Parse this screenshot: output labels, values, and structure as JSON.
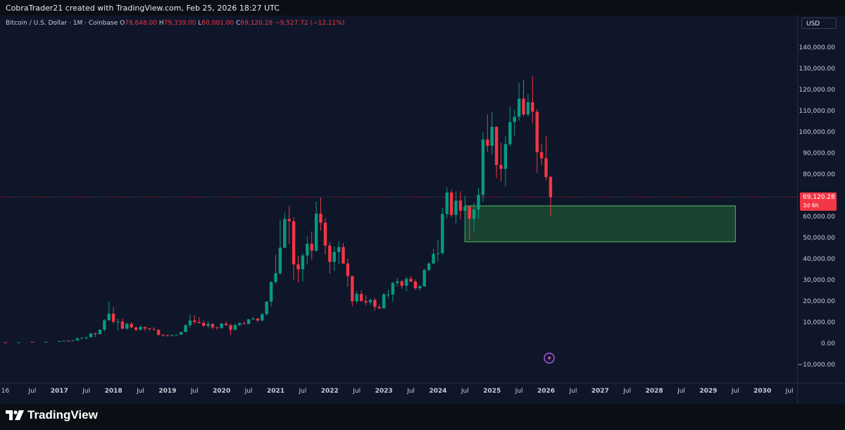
{
  "credit": "CobraTrader21 created with TradingView.com, Feb 25, 2026 18:27 UTC",
  "legend": {
    "symbol": "Bitcoin / U.S. Dollar · 1M · Coinbase",
    "o_label": "O",
    "o_value": "78,648.00",
    "h_label": "H",
    "h_value": "79,339.00",
    "l_label": "L",
    "l_value": "60,001.00",
    "c_label": "C",
    "c_value": "69,120.28",
    "change": "−9,527.72 (−12.11%)"
  },
  "currency_button": "USD",
  "last_price": {
    "price": "69,120.28",
    "countdown": "3d 6h",
    "value": 69120.28
  },
  "brand": "TradingView",
  "colors": {
    "up": "#089981",
    "down": "#f23645",
    "zone_fill": "#1b4a33",
    "zone_border": "#4ec25a",
    "background": "#0f1629",
    "text": "#c7ccd6"
  },
  "icons": {
    "logo": "tradingview-logo-icon",
    "events": "events-icon"
  },
  "chart_data": {
    "type": "candlestick",
    "title": "Bitcoin / U.S. Dollar · 1M · Coinbase",
    "y_range": [
      -15000,
      150000
    ],
    "y_ticks": [
      140000,
      130000,
      120000,
      110000,
      100000,
      90000,
      80000,
      70000,
      60000,
      50000,
      40000,
      30000,
      20000,
      10000,
      0,
      -10000
    ],
    "y_tick_labels": [
      "140,000.00",
      "130,000.00",
      "120,000.00",
      "110,000.00",
      "100,000.00",
      "90,000.00",
      "80,000.00",
      "70,000.00",
      "60,000.00",
      "50,000.00",
      "40,000.00",
      "30,000.00",
      "20,000.00",
      "10,000.00",
      "0.00",
      "−10,000.00"
    ],
    "x_ticks": [
      {
        "label": "16",
        "date": "2016-01"
      },
      {
        "label": "Jul",
        "date": "2016-07"
      },
      {
        "label": "2017",
        "date": "2017-01"
      },
      {
        "label": "Jul",
        "date": "2017-07"
      },
      {
        "label": "2018",
        "date": "2018-01"
      },
      {
        "label": "Jul",
        "date": "2018-07"
      },
      {
        "label": "2019",
        "date": "2019-01"
      },
      {
        "label": "Jul",
        "date": "2019-07"
      },
      {
        "label": "2020",
        "date": "2020-01"
      },
      {
        "label": "Jul",
        "date": "2020-07"
      },
      {
        "label": "2021",
        "date": "2021-01"
      },
      {
        "label": "Jul",
        "date": "2021-07"
      },
      {
        "label": "2022",
        "date": "2022-01"
      },
      {
        "label": "Jul",
        "date": "2022-07"
      },
      {
        "label": "2023",
        "date": "2023-01"
      },
      {
        "label": "Jul",
        "date": "2023-07"
      },
      {
        "label": "2024",
        "date": "2024-01"
      },
      {
        "label": "Jul",
        "date": "2024-07"
      },
      {
        "label": "2025",
        "date": "2025-01"
      },
      {
        "label": "Jul",
        "date": "2025-07"
      },
      {
        "label": "2026",
        "date": "2026-01"
      },
      {
        "label": "Jul",
        "date": "2026-07"
      },
      {
        "label": "2027",
        "date": "2027-01"
      },
      {
        "label": "Jul",
        "date": "2027-07"
      },
      {
        "label": "2028",
        "date": "2028-01"
      },
      {
        "label": "Jul",
        "date": "2028-07"
      },
      {
        "label": "2029",
        "date": "2029-01"
      },
      {
        "label": "Jul",
        "date": "2029-07"
      },
      {
        "label": "2030",
        "date": "2030-01"
      },
      {
        "label": "Jul",
        "date": "2030-07"
      }
    ],
    "zone": {
      "date_start": "2024-07",
      "date_end": "2029-07",
      "low": 48000,
      "high": 65000
    },
    "grid": false,
    "candles": [
      {
        "d": "2016-01",
        "o": 430,
        "h": 460,
        "l": 350,
        "c": 370
      },
      {
        "d": "2016-04",
        "o": 420,
        "h": 470,
        "l": 400,
        "c": 450
      },
      {
        "d": "2016-07",
        "o": 670,
        "h": 700,
        "l": 600,
        "c": 620
      },
      {
        "d": "2016-10",
        "o": 610,
        "h": 740,
        "l": 600,
        "c": 700
      },
      {
        "d": "2017-01",
        "o": 960,
        "h": 1150,
        "l": 750,
        "c": 970
      },
      {
        "d": "2017-02",
        "o": 970,
        "h": 1200,
        "l": 930,
        "c": 1190
      },
      {
        "d": "2017-03",
        "o": 1190,
        "h": 1350,
        "l": 890,
        "c": 1080
      },
      {
        "d": "2017-04",
        "o": 1080,
        "h": 1450,
        "l": 1060,
        "c": 1350
      },
      {
        "d": "2017-05",
        "o": 1350,
        "h": 2800,
        "l": 1350,
        "c": 2300
      },
      {
        "d": "2017-06",
        "o": 2300,
        "h": 3000,
        "l": 2100,
        "c": 2480
      },
      {
        "d": "2017-07",
        "o": 2480,
        "h": 2950,
        "l": 1800,
        "c": 2870
      },
      {
        "d": "2017-08",
        "o": 2870,
        "h": 4750,
        "l": 2700,
        "c": 4740
      },
      {
        "d": "2017-09",
        "o": 4740,
        "h": 4980,
        "l": 2980,
        "c": 4340
      },
      {
        "d": "2017-10",
        "o": 4340,
        "h": 6470,
        "l": 4100,
        "c": 6460
      },
      {
        "d": "2017-11",
        "o": 6460,
        "h": 11500,
        "l": 5500,
        "c": 10850
      },
      {
        "d": "2017-12",
        "o": 10850,
        "h": 19800,
        "l": 10800,
        "c": 14000
      },
      {
        "d": "2018-01",
        "o": 14000,
        "h": 17200,
        "l": 9200,
        "c": 10200
      },
      {
        "d": "2018-02",
        "o": 10200,
        "h": 11800,
        "l": 6000,
        "c": 10300
      },
      {
        "d": "2018-03",
        "o": 10300,
        "h": 11700,
        "l": 6600,
        "c": 6900
      },
      {
        "d": "2018-04",
        "o": 6900,
        "h": 9800,
        "l": 6500,
        "c": 9200
      },
      {
        "d": "2018-05",
        "o": 9200,
        "h": 10000,
        "l": 7000,
        "c": 7500
      },
      {
        "d": "2018-06",
        "o": 7500,
        "h": 7750,
        "l": 5800,
        "c": 6400
      },
      {
        "d": "2018-07",
        "o": 6400,
        "h": 8500,
        "l": 6100,
        "c": 7730
      },
      {
        "d": "2018-08",
        "o": 7730,
        "h": 7750,
        "l": 5900,
        "c": 7030
      },
      {
        "d": "2018-09",
        "o": 7030,
        "h": 7400,
        "l": 6100,
        "c": 6630
      },
      {
        "d": "2018-10",
        "o": 6630,
        "h": 7600,
        "l": 6200,
        "c": 6350
      },
      {
        "d": "2018-11",
        "o": 6350,
        "h": 6600,
        "l": 3600,
        "c": 4000
      },
      {
        "d": "2018-12",
        "o": 4000,
        "h": 4200,
        "l": 3150,
        "c": 3700
      },
      {
        "d": "2019-01",
        "o": 3700,
        "h": 4100,
        "l": 3350,
        "c": 3460
      },
      {
        "d": "2019-02",
        "o": 3460,
        "h": 4200,
        "l": 3400,
        "c": 3830
      },
      {
        "d": "2019-03",
        "o": 3830,
        "h": 4100,
        "l": 3700,
        "c": 4100
      },
      {
        "d": "2019-04",
        "o": 4100,
        "h": 5600,
        "l": 4050,
        "c": 5300
      },
      {
        "d": "2019-05",
        "o": 5300,
        "h": 9000,
        "l": 5300,
        "c": 8550
      },
      {
        "d": "2019-06",
        "o": 8550,
        "h": 13800,
        "l": 7500,
        "c": 10800
      },
      {
        "d": "2019-07",
        "o": 10800,
        "h": 13200,
        "l": 9100,
        "c": 10100
      },
      {
        "d": "2019-08",
        "o": 10100,
        "h": 12300,
        "l": 9300,
        "c": 9600
      },
      {
        "d": "2019-09",
        "o": 9600,
        "h": 10900,
        "l": 7700,
        "c": 8300
      },
      {
        "d": "2019-10",
        "o": 8300,
        "h": 10400,
        "l": 7300,
        "c": 9150
      },
      {
        "d": "2019-11",
        "o": 9150,
        "h": 9500,
        "l": 6500,
        "c": 7550
      },
      {
        "d": "2019-12",
        "o": 7550,
        "h": 7750,
        "l": 6400,
        "c": 7200
      },
      {
        "d": "2020-01",
        "o": 7200,
        "h": 9600,
        "l": 6900,
        "c": 9350
      },
      {
        "d": "2020-02",
        "o": 9350,
        "h": 10500,
        "l": 8400,
        "c": 8550
      },
      {
        "d": "2020-03",
        "o": 8550,
        "h": 9200,
        "l": 3850,
        "c": 6400
      },
      {
        "d": "2020-04",
        "o": 6400,
        "h": 9450,
        "l": 6150,
        "c": 8620
      },
      {
        "d": "2020-05",
        "o": 8620,
        "h": 10000,
        "l": 8100,
        "c": 9450
      },
      {
        "d": "2020-06",
        "o": 9450,
        "h": 10400,
        "l": 8900,
        "c": 9140
      },
      {
        "d": "2020-07",
        "o": 9140,
        "h": 11400,
        "l": 8900,
        "c": 11350
      },
      {
        "d": "2020-08",
        "o": 11350,
        "h": 12500,
        "l": 10900,
        "c": 11650
      },
      {
        "d": "2020-09",
        "o": 11650,
        "h": 12100,
        "l": 9900,
        "c": 10780
      },
      {
        "d": "2020-10",
        "o": 10780,
        "h": 14100,
        "l": 10400,
        "c": 13800
      },
      {
        "d": "2020-11",
        "o": 13800,
        "h": 19900,
        "l": 13200,
        "c": 19700
      },
      {
        "d": "2020-12",
        "o": 19700,
        "h": 29300,
        "l": 17600,
        "c": 28990
      },
      {
        "d": "2021-01",
        "o": 28990,
        "h": 41900,
        "l": 28100,
        "c": 33100
      },
      {
        "d": "2021-02",
        "o": 33100,
        "h": 58400,
        "l": 32300,
        "c": 45200
      },
      {
        "d": "2021-03",
        "o": 45200,
        "h": 61800,
        "l": 45000,
        "c": 58800
      },
      {
        "d": "2021-04",
        "o": 58800,
        "h": 64900,
        "l": 47000,
        "c": 57700
      },
      {
        "d": "2021-05",
        "o": 57700,
        "h": 59600,
        "l": 30000,
        "c": 37300
      },
      {
        "d": "2021-06",
        "o": 37300,
        "h": 41300,
        "l": 28800,
        "c": 35000
      },
      {
        "d": "2021-07",
        "o": 35000,
        "h": 42400,
        "l": 29300,
        "c": 41500
      },
      {
        "d": "2021-08",
        "o": 41500,
        "h": 50500,
        "l": 37300,
        "c": 47100
      },
      {
        "d": "2021-09",
        "o": 47100,
        "h": 52900,
        "l": 39600,
        "c": 43800
      },
      {
        "d": "2021-10",
        "o": 43800,
        "h": 67000,
        "l": 43300,
        "c": 61300
      },
      {
        "d": "2021-11",
        "o": 61300,
        "h": 69000,
        "l": 53300,
        "c": 57000
      },
      {
        "d": "2021-12",
        "o": 57000,
        "h": 59100,
        "l": 42000,
        "c": 46200
      },
      {
        "d": "2022-01",
        "o": 46200,
        "h": 47900,
        "l": 32900,
        "c": 38500
      },
      {
        "d": "2022-02",
        "o": 38500,
        "h": 45800,
        "l": 34300,
        "c": 43200
      },
      {
        "d": "2022-03",
        "o": 43200,
        "h": 48200,
        "l": 37200,
        "c": 45500
      },
      {
        "d": "2022-04",
        "o": 45500,
        "h": 47400,
        "l": 37600,
        "c": 37700
      },
      {
        "d": "2022-05",
        "o": 37700,
        "h": 40000,
        "l": 26700,
        "c": 31800
      },
      {
        "d": "2022-06",
        "o": 31800,
        "h": 31900,
        "l": 17600,
        "c": 19900
      },
      {
        "d": "2022-07",
        "o": 19900,
        "h": 24700,
        "l": 18800,
        "c": 23300
      },
      {
        "d": "2022-08",
        "o": 23300,
        "h": 25200,
        "l": 19600,
        "c": 20000
      },
      {
        "d": "2022-09",
        "o": 20000,
        "h": 22800,
        "l": 18100,
        "c": 19400
      },
      {
        "d": "2022-10",
        "o": 19400,
        "h": 21100,
        "l": 18200,
        "c": 20500
      },
      {
        "d": "2022-11",
        "o": 20500,
        "h": 21500,
        "l": 15500,
        "c": 17200
      },
      {
        "d": "2022-12",
        "o": 17200,
        "h": 18400,
        "l": 16300,
        "c": 16500
      },
      {
        "d": "2023-01",
        "o": 16500,
        "h": 23900,
        "l": 16500,
        "c": 23100
      },
      {
        "d": "2023-02",
        "o": 23100,
        "h": 25300,
        "l": 21400,
        "c": 23100
      },
      {
        "d": "2023-03",
        "o": 23100,
        "h": 29200,
        "l": 19600,
        "c": 28500
      },
      {
        "d": "2023-04",
        "o": 28500,
        "h": 31000,
        "l": 26900,
        "c": 29300
      },
      {
        "d": "2023-05",
        "o": 29300,
        "h": 29900,
        "l": 25800,
        "c": 27200
      },
      {
        "d": "2023-06",
        "o": 27200,
        "h": 31400,
        "l": 24800,
        "c": 30500
      },
      {
        "d": "2023-07",
        "o": 30500,
        "h": 31800,
        "l": 28900,
        "c": 29200
      },
      {
        "d": "2023-08",
        "o": 29200,
        "h": 30200,
        "l": 25200,
        "c": 26000
      },
      {
        "d": "2023-09",
        "o": 26000,
        "h": 27500,
        "l": 24900,
        "c": 27000
      },
      {
        "d": "2023-10",
        "o": 27000,
        "h": 35300,
        "l": 26600,
        "c": 34700
      },
      {
        "d": "2023-11",
        "o": 34700,
        "h": 38400,
        "l": 34100,
        "c": 37700
      },
      {
        "d": "2023-12",
        "o": 37700,
        "h": 44700,
        "l": 37600,
        "c": 42300
      },
      {
        "d": "2024-01",
        "o": 42300,
        "h": 48900,
        "l": 38600,
        "c": 42600
      },
      {
        "d": "2024-02",
        "o": 42600,
        "h": 64000,
        "l": 41900,
        "c": 61200
      },
      {
        "d": "2024-03",
        "o": 61200,
        "h": 73800,
        "l": 59100,
        "c": 71300
      },
      {
        "d": "2024-04",
        "o": 71300,
        "h": 72800,
        "l": 59600,
        "c": 60700
      },
      {
        "d": "2024-05",
        "o": 60700,
        "h": 71900,
        "l": 56600,
        "c": 67500
      },
      {
        "d": "2024-06",
        "o": 67500,
        "h": 71900,
        "l": 58500,
        "c": 62700
      },
      {
        "d": "2024-07",
        "o": 62700,
        "h": 70000,
        "l": 53500,
        "c": 64600
      },
      {
        "d": "2024-08",
        "o": 64600,
        "h": 65100,
        "l": 49000,
        "c": 58900
      },
      {
        "d": "2024-09",
        "o": 58900,
        "h": 66500,
        "l": 52500,
        "c": 63300
      },
      {
        "d": "2024-10",
        "o": 63300,
        "h": 73600,
        "l": 58900,
        "c": 70200
      },
      {
        "d": "2024-11",
        "o": 70200,
        "h": 99800,
        "l": 66800,
        "c": 96400
      },
      {
        "d": "2024-12",
        "o": 96400,
        "h": 108300,
        "l": 90500,
        "c": 93400
      },
      {
        "d": "2025-01",
        "o": 93400,
        "h": 109600,
        "l": 89200,
        "c": 102400
      },
      {
        "d": "2025-02",
        "o": 102400,
        "h": 102500,
        "l": 78200,
        "c": 84300
      },
      {
        "d": "2025-03",
        "o": 84300,
        "h": 95000,
        "l": 76600,
        "c": 82500
      },
      {
        "d": "2025-04",
        "o": 82500,
        "h": 97900,
        "l": 74400,
        "c": 94200
      },
      {
        "d": "2025-05",
        "o": 94200,
        "h": 111900,
        "l": 93300,
        "c": 104600
      },
      {
        "d": "2025-06",
        "o": 104600,
        "h": 110400,
        "l": 98200,
        "c": 107100
      },
      {
        "d": "2025-07",
        "o": 107100,
        "h": 123200,
        "l": 105300,
        "c": 115700
      },
      {
        "d": "2025-08",
        "o": 115700,
        "h": 124500,
        "l": 107300,
        "c": 108200
      },
      {
        "d": "2025-09",
        "o": 108200,
        "h": 117900,
        "l": 107300,
        "c": 114000
      },
      {
        "d": "2025-10",
        "o": 114000,
        "h": 126200,
        "l": 104000,
        "c": 109500
      },
      {
        "d": "2025-11",
        "o": 109500,
        "h": 110700,
        "l": 80600,
        "c": 90400
      },
      {
        "d": "2025-12",
        "o": 90400,
        "h": 94500,
        "l": 84400,
        "c": 87500
      },
      {
        "d": "2026-01",
        "o": 87500,
        "h": 97900,
        "l": 77000,
        "c": 78648
      },
      {
        "d": "2026-02",
        "o": 78648,
        "h": 79339,
        "l": 60001,
        "c": 69120.28
      }
    ]
  }
}
